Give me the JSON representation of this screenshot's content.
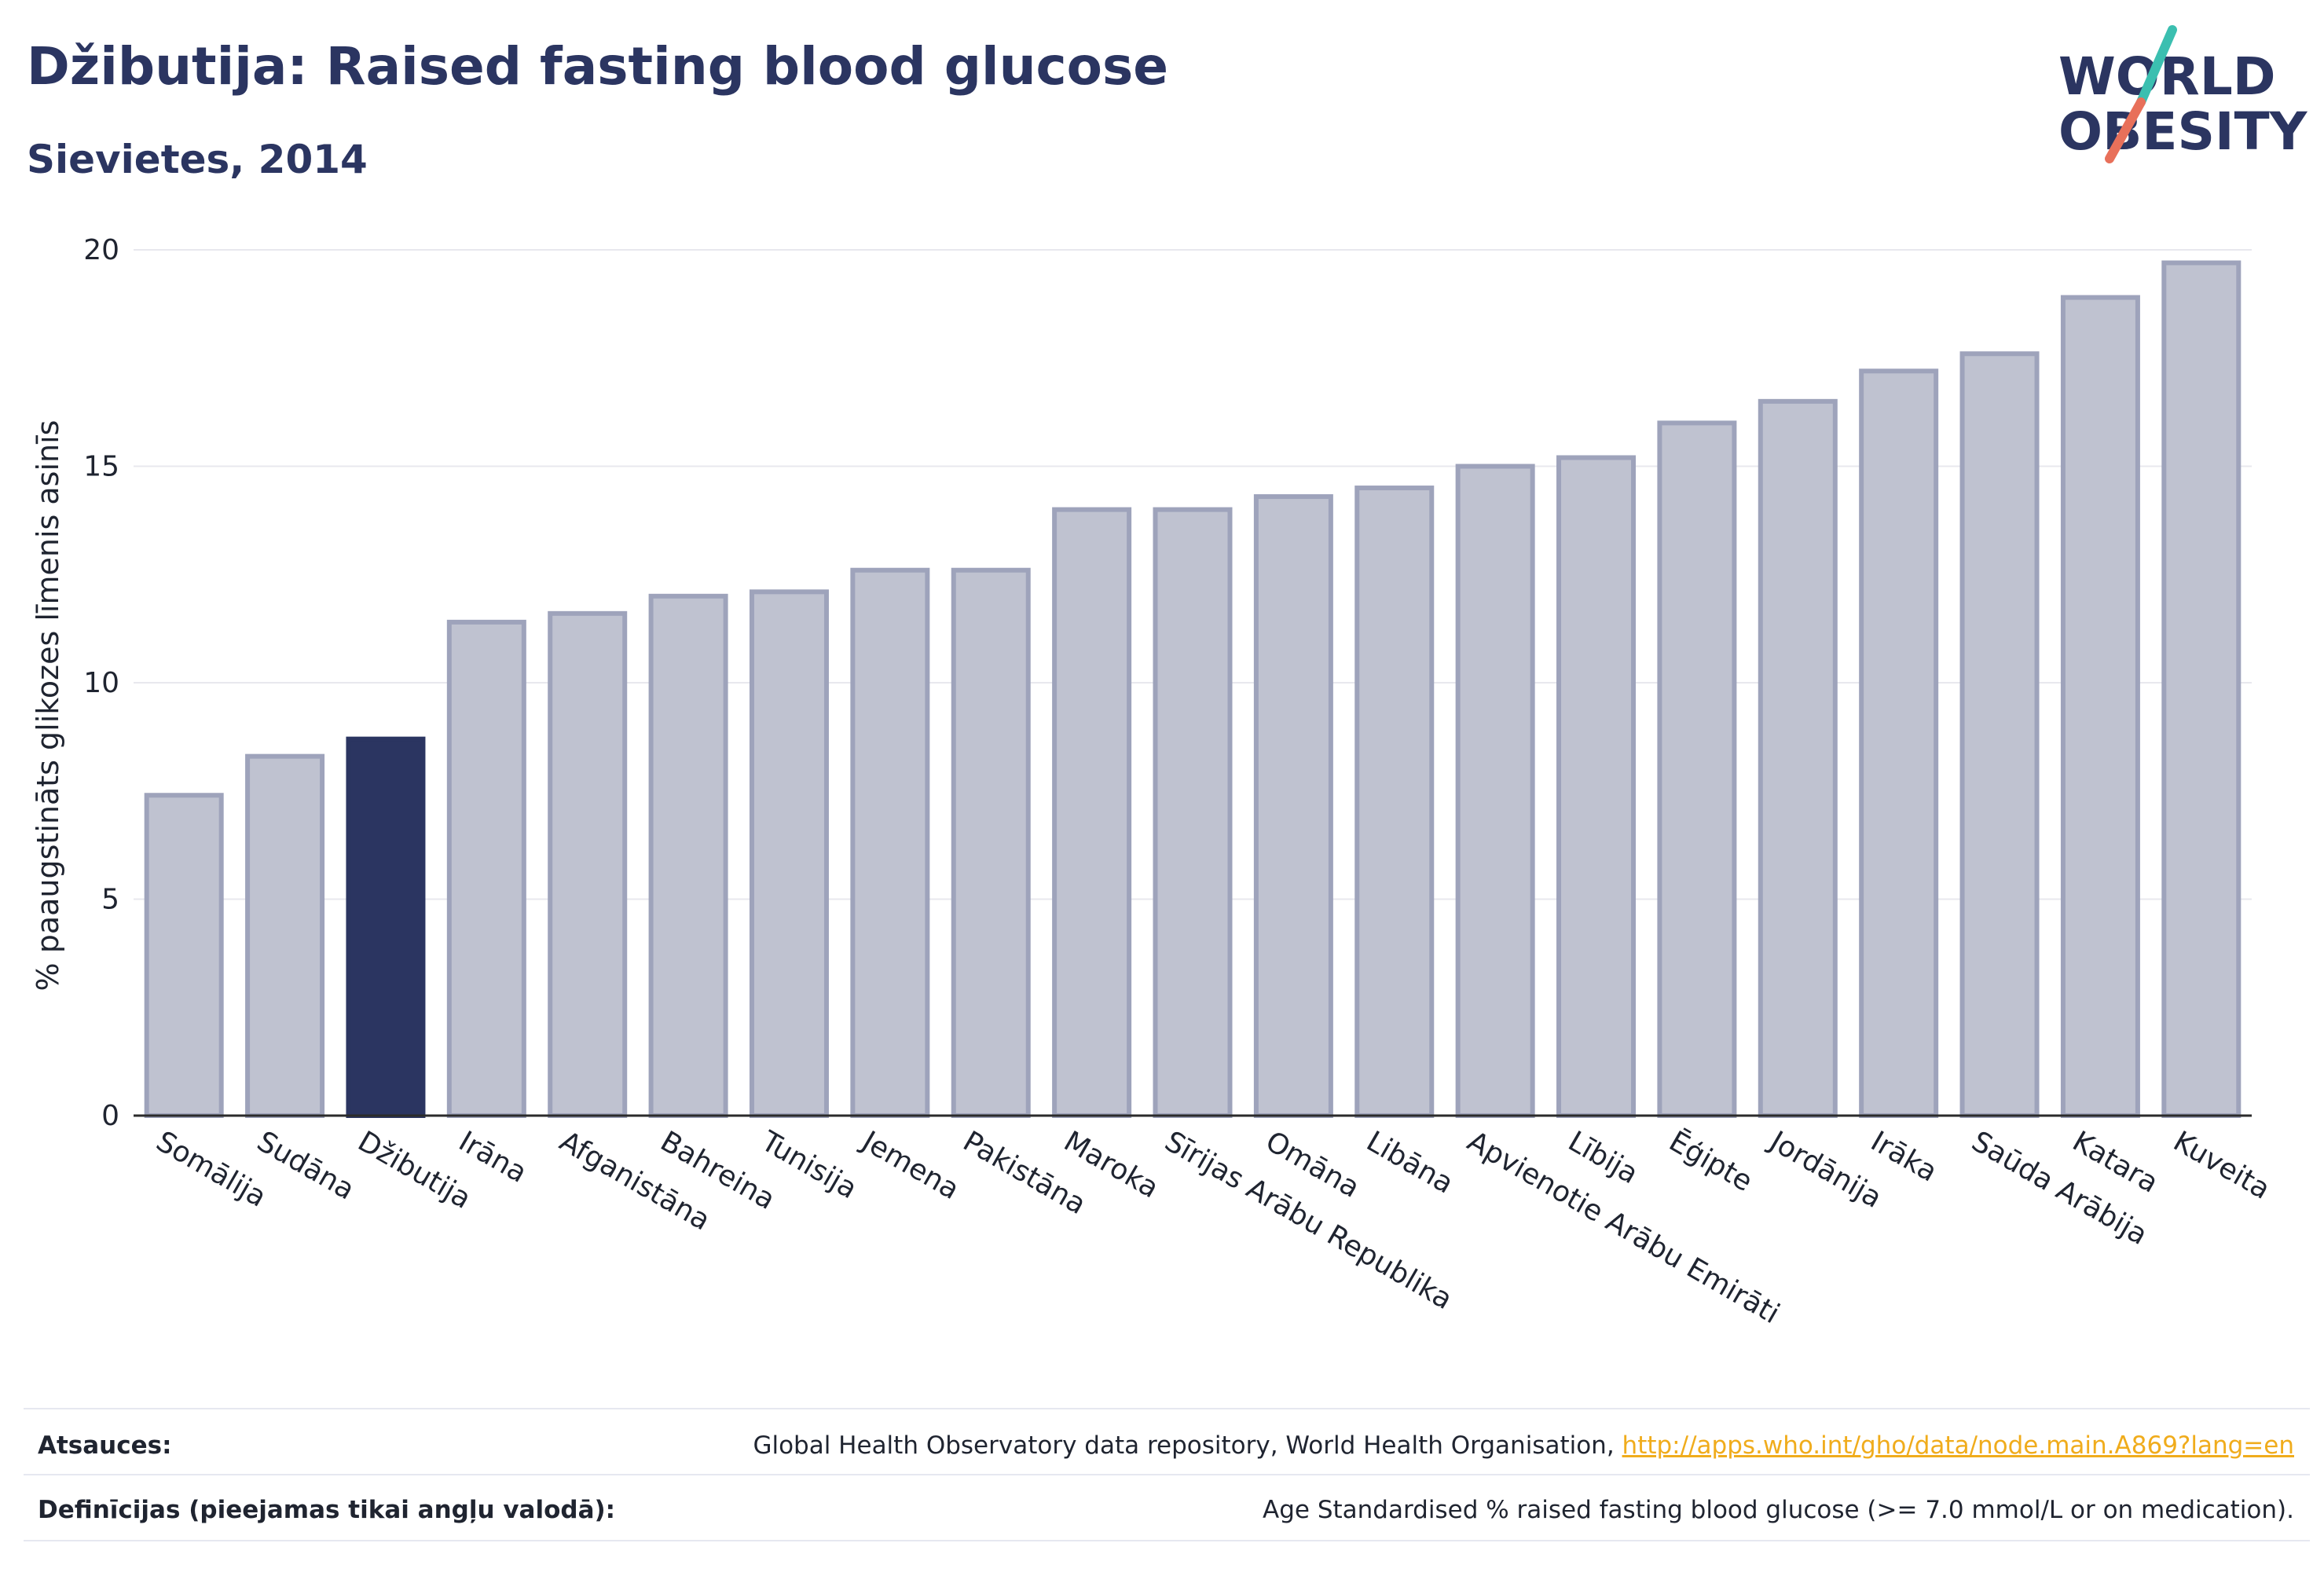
{
  "header": {
    "title": "Džibutija: Raised fasting blood glucose",
    "subtitle": "Sievietes, 2014"
  },
  "logo": {
    "line1": "WORLD",
    "line2": "OBESITY",
    "colors": {
      "text": "#2b3561",
      "slash_top": "#3bbfb0",
      "slash_bottom": "#e8705a"
    }
  },
  "chart_data": {
    "type": "bar",
    "ylabel": "% paaugstināts glikozes līmenis asinīs",
    "xlabel": "",
    "ylim": [
      0,
      20
    ],
    "yticks": [
      0,
      5,
      10,
      15,
      20
    ],
    "grid": true,
    "highlight_category": "Džibutija",
    "colors": {
      "bar": "#bfc2d0",
      "bar_border": "#9ea3bb",
      "highlight": "#2b3561",
      "grid": "#e8e8ee",
      "axis": "#2b2b2b"
    },
    "categories": [
      "Somālija",
      "Sudāna",
      "Džibutija",
      "Irāna",
      "Afganistāna",
      "Bahreina",
      "Tunisija",
      "Jemena",
      "Pakistāna",
      "Maroka",
      "Sīrijas Arābu Republika",
      "Omāna",
      "Libāna",
      "Apvienotie Arābu Emirāti",
      "Lībija",
      "Ēģipte",
      "Jordānija",
      "Irāka",
      "Saūda Arābija",
      "Katara",
      "Kuveita"
    ],
    "values": [
      7.4,
      8.3,
      8.7,
      11.4,
      11.6,
      12.0,
      12.1,
      12.6,
      12.6,
      14.0,
      14.0,
      14.3,
      14.5,
      15.0,
      15.2,
      16.0,
      16.5,
      17.2,
      17.6,
      18.9,
      19.7
    ]
  },
  "footer": {
    "sources_label": "Atsauces:",
    "sources_text": "Global Health Observatory data repository, World Health Organisation, ",
    "sources_link": "http://apps.who.int/gho/data/node.main.A869?lang=en",
    "definitions_label": "Definīcijas (pieejamas tikai angļu valodā):",
    "definitions_text": "Age Standardised % raised fasting blood glucose (>= 7.0 mmol/L or on medication)."
  }
}
